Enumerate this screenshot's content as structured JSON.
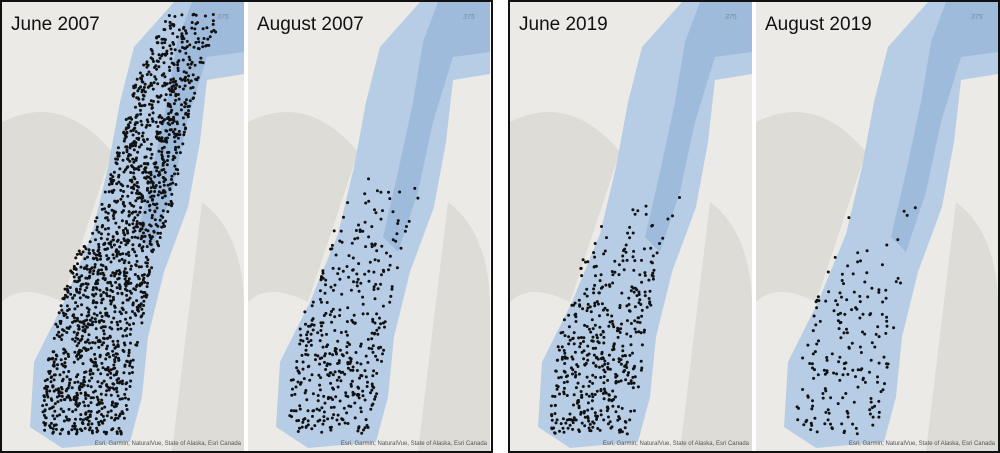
{
  "colors": {
    "land": "#eceae6",
    "lake": "#b7cde6",
    "lake_deep": "#9fbbdc",
    "point": "#111111",
    "frame": "#111111"
  },
  "panels": [
    {
      "title": "June 2007",
      "highway_label": "375",
      "attribution": "Esri, Garmin, NaturalVue, State of Alaska, Esri Canada",
      "relative_point_density": "very high"
    },
    {
      "title": "August 2007",
      "highway_label": "375",
      "attribution": "Esri, Garmin, NaturalVue, State of Alaska, Esri Canada",
      "relative_point_density": "medium, concentrated south"
    },
    {
      "title": "June 2019",
      "highway_label": "375",
      "attribution": "Esri, Garmin, NaturalVue, State of Alaska, Esri Canada",
      "relative_point_density": "medium, concentrated south"
    },
    {
      "title": "August 2019",
      "highway_label": "375",
      "attribution": "Esri, Garmin, NaturalVue, State of Alaska, Esri Canada",
      "relative_point_density": "low, concentrated south"
    }
  ]
}
